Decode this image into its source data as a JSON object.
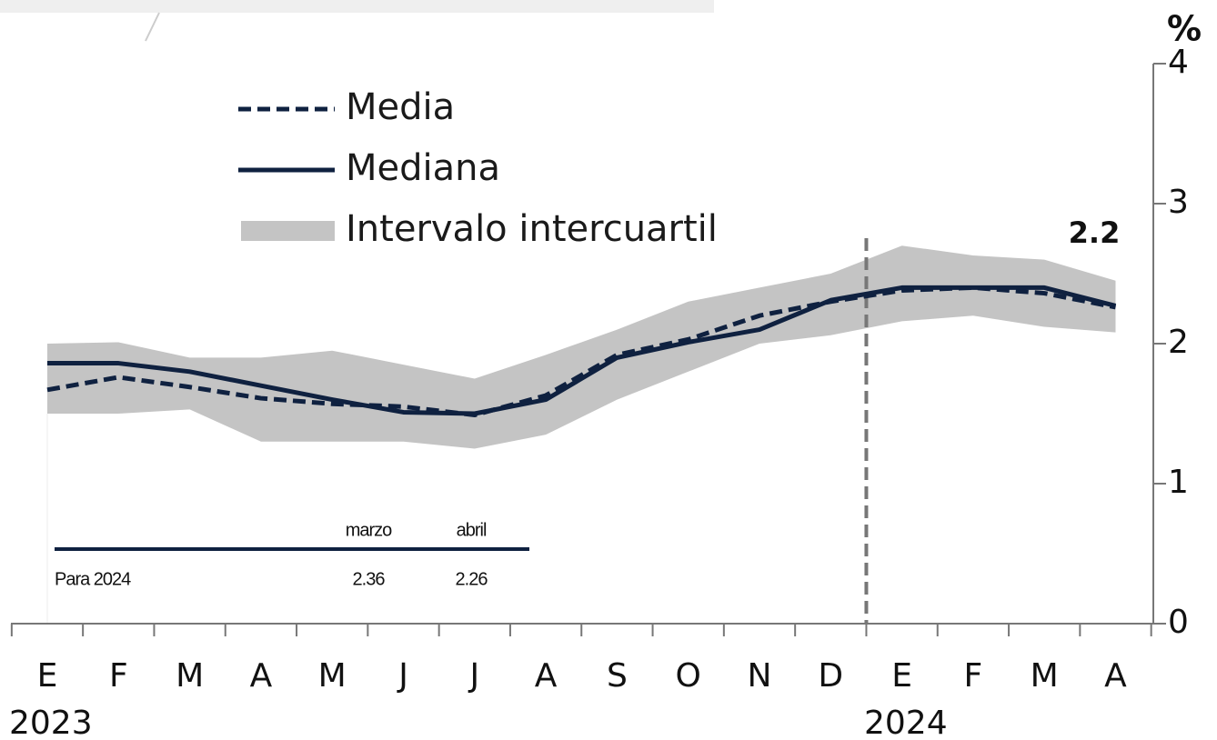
{
  "chart_data": {
    "type": "line",
    "categories": [
      "E",
      "F",
      "M",
      "A",
      "M",
      "J",
      "J",
      "A",
      "S",
      "O",
      "N",
      "D",
      "E",
      "F",
      "M",
      "A"
    ],
    "year_labels": [
      "2023",
      "2024"
    ],
    "unit": "%",
    "ylim": [
      0,
      4
    ],
    "yticks": [
      0,
      1,
      2,
      3,
      4
    ],
    "series": [
      {
        "name": "Media",
        "color": "#0f2140",
        "style": "dashed",
        "values": [
          1.67,
          1.76,
          1.69,
          1.61,
          1.57,
          1.55,
          1.49,
          1.63,
          1.92,
          2.03,
          2.2,
          2.3,
          2.38,
          2.4,
          2.36,
          2.26
        ]
      },
      {
        "name": "Mediana",
        "color": "#0f2140",
        "style": "solid",
        "values": [
          1.86,
          1.86,
          1.8,
          1.7,
          1.6,
          1.51,
          1.5,
          1.6,
          1.9,
          2.01,
          2.1,
          2.31,
          2.4,
          2.4,
          2.4,
          2.27
        ]
      },
      {
        "name": "Intervalo intercuartil",
        "color": "#c4c4c4",
        "style": "band",
        "low": [
          1.5,
          1.5,
          1.53,
          1.3,
          1.3,
          1.3,
          1.25,
          1.35,
          1.6,
          1.8,
          2.0,
          2.06,
          2.16,
          2.2,
          2.12,
          2.08
        ],
        "high": [
          2.0,
          2.01,
          1.9,
          1.9,
          1.95,
          1.85,
          1.75,
          1.92,
          2.1,
          2.3,
          2.4,
          2.5,
          2.7,
          2.63,
          2.6,
          2.45
        ]
      }
    ],
    "annotation": "2.2"
  },
  "table": {
    "columns": [
      "marzo",
      "abril"
    ],
    "rows": [
      [
        "Para 2024",
        2.36,
        2.26
      ]
    ]
  }
}
